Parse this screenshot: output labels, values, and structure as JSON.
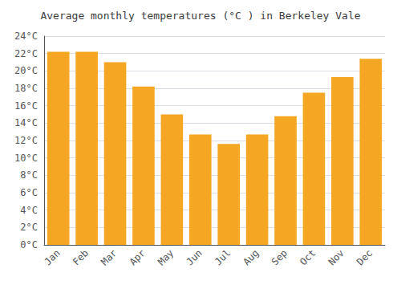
{
  "chart_data": {
    "type": "bar",
    "title": "Average monthly temperatures (°C ) in Berkeley Vale",
    "categories": [
      "Jan",
      "Feb",
      "Mar",
      "Apr",
      "May",
      "Jun",
      "Jul",
      "Aug",
      "Sep",
      "Oct",
      "Nov",
      "Dec"
    ],
    "values": [
      22.2,
      22.2,
      21.0,
      18.2,
      15.0,
      12.7,
      11.6,
      12.7,
      14.8,
      17.5,
      19.3,
      21.4
    ],
    "color": "#F5A623",
    "ylim": [
      0,
      24
    ],
    "yticks": [
      {
        "value": 0,
        "label": "0°C"
      },
      {
        "value": 2,
        "label": "2°C"
      },
      {
        "value": 4,
        "label": "4°C"
      },
      {
        "value": 6,
        "label": "6°C"
      },
      {
        "value": 8,
        "label": "8°C"
      },
      {
        "value": 10,
        "label": "10°C"
      },
      {
        "value": 12,
        "label": "12°C"
      },
      {
        "value": 14,
        "label": "14°C"
      },
      {
        "value": 16,
        "label": "16°C"
      },
      {
        "value": 18,
        "label": "18°C"
      },
      {
        "value": 20,
        "label": "20°C"
      },
      {
        "value": 22,
        "label": "22°C"
      },
      {
        "value": 24,
        "label": "24°C"
      }
    ],
    "grid": true
  }
}
